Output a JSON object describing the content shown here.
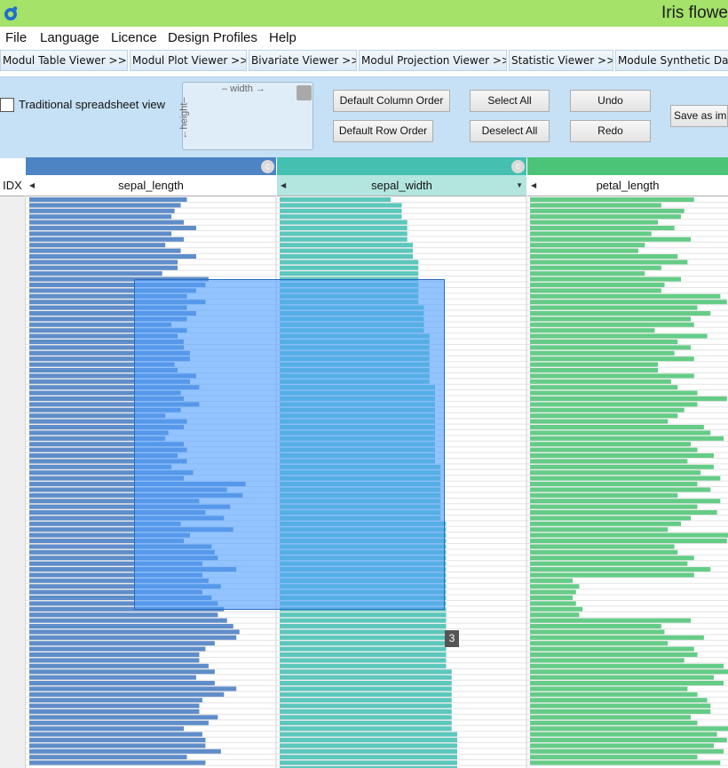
{
  "window": {
    "title": "Iris flowe"
  },
  "menu": [
    "File",
    "Language",
    "Licence",
    "Design Profiles",
    "Help"
  ],
  "modules": [
    "Modul Table Viewer >>",
    "Modul Plot Viewer >>",
    "Bivariate Viewer >>",
    "Modul Projection Viewer >>",
    "Statistic Viewer >>",
    "Module Synthetic Data"
  ],
  "toolbar": {
    "spreadsheet_label": "Traditional spreadsheet view",
    "spreadsheet_checked": false,
    "width_label": "– width →",
    "height_label": "←height–",
    "default_column_order": "Default Column Order",
    "default_row_order": "Default Row Order",
    "select_all": "Select All",
    "deselect_all": "Deselect All",
    "undo": "Undo",
    "redo": "Redo",
    "save_as_image": "Save as im"
  },
  "table": {
    "idx_header": "IDX",
    "band_icon": "c",
    "columns": [
      {
        "name": "sepal_length",
        "color": "#4c84c4",
        "bar_color": "#5f8dc9",
        "max": 7.9,
        "values": [
          5.1,
          4.9,
          4.7,
          4.6,
          5.0,
          5.4,
          4.6,
          5.0,
          4.4,
          4.9,
          5.4,
          4.8,
          4.8,
          4.3,
          5.8,
          5.7,
          5.4,
          5.1,
          5.7,
          5.1,
          5.4,
          5.1,
          4.6,
          5.1,
          4.8,
          5.0,
          5.0,
          5.2,
          5.2,
          4.7,
          4.8,
          5.4,
          5.2,
          5.5,
          4.9,
          5.0,
          5.5,
          4.9,
          4.4,
          5.1,
          5.0,
          4.5,
          4.4,
          5.0,
          5.1,
          4.8,
          5.1,
          4.6,
          5.3,
          5.0,
          7.0,
          6.4,
          6.9,
          5.5,
          6.5,
          5.7,
          6.3,
          4.9,
          6.6,
          5.2,
          5.0,
          5.9,
          6.0,
          6.1,
          5.6,
          6.7,
          5.6,
          5.8,
          6.2,
          5.6,
          5.9,
          6.1,
          6.3,
          6.1,
          6.4,
          6.6,
          6.8,
          6.7,
          6.0,
          5.7,
          5.5,
          5.5,
          5.8,
          6.0,
          5.4,
          6.0,
          6.7,
          6.3,
          5.6,
          5.5,
          5.5,
          6.1,
          5.8,
          5.0,
          5.6,
          5.7,
          5.7,
          6.2,
          5.1,
          5.7
        ]
      },
      {
        "name": "sepal_width",
        "color": "#45bfb0",
        "bar_color": "#5cc7bc",
        "max": 4.4,
        "values": [
          2.0,
          2.2,
          2.2,
          2.2,
          2.3,
          2.3,
          2.3,
          2.3,
          2.4,
          2.4,
          2.4,
          2.5,
          2.5,
          2.5,
          2.5,
          2.5,
          2.5,
          2.5,
          2.5,
          2.6,
          2.6,
          2.6,
          2.6,
          2.6,
          2.7,
          2.7,
          2.7,
          2.7,
          2.7,
          2.7,
          2.7,
          2.7,
          2.7,
          2.8,
          2.8,
          2.8,
          2.8,
          2.8,
          2.8,
          2.8,
          2.8,
          2.8,
          2.8,
          2.8,
          2.8,
          2.8,
          2.8,
          2.9,
          2.9,
          2.9,
          2.9,
          2.9,
          2.9,
          2.9,
          2.9,
          2.9,
          2.9,
          3.0,
          3.0,
          3.0,
          3.0,
          3.0,
          3.0,
          3.0,
          3.0,
          3.0,
          3.0,
          3.0,
          3.0,
          3.0,
          3.0,
          3.0,
          3.0,
          3.0,
          3.0,
          3.0,
          3.0,
          3.0,
          3.0,
          3.0,
          3.0,
          3.0,
          3.0,
          3.1,
          3.1,
          3.1,
          3.1,
          3.1,
          3.1,
          3.1,
          3.1,
          3.1,
          3.1,
          3.1,
          3.2,
          3.2,
          3.2,
          3.2,
          3.2,
          3.2,
          3.2
        ]
      },
      {
        "name": "petal_length",
        "color": "#4cc477",
        "bar_color": "#64cc86",
        "max": 6.9,
        "values": [
          5.0,
          4.0,
          4.7,
          4.6,
          3.9,
          4.4,
          3.7,
          4.9,
          3.5,
          3.3,
          4.5,
          4.8,
          4.0,
          3.5,
          4.6,
          4.1,
          4.0,
          5.8,
          6.0,
          5.1,
          5.5,
          4.9,
          5.0,
          3.8,
          5.4,
          4.5,
          4.9,
          4.4,
          5.0,
          3.9,
          3.9,
          5.0,
          4.3,
          4.5,
          5.1,
          6.0,
          5.1,
          4.7,
          4.5,
          4.2,
          5.3,
          5.5,
          5.9,
          4.9,
          5.1,
          5.6,
          4.8,
          5.6,
          5.2,
          5.8,
          5.1,
          5.5,
          4.5,
          5.8,
          5.1,
          5.7,
          4.9,
          4.6,
          4.2,
          6.1,
          6.0,
          4.4,
          4.5,
          5.0,
          4.8,
          5.5,
          5.0,
          1.3,
          1.5,
          1.4,
          1.3,
          1.4,
          1.6,
          1.5,
          4.9,
          4.0,
          4.1,
          5.3,
          4.2,
          5.0,
          5.1,
          4.7,
          5.9,
          6.1,
          5.6,
          5.9,
          4.8,
          5.1,
          5.4,
          5.5,
          5.5,
          4.9,
          5.1,
          6.3,
          5.7,
          6.0,
          5.6,
          5.9,
          5.1,
          5.8
        ]
      }
    ]
  },
  "selection": {
    "row_count": "3"
  }
}
